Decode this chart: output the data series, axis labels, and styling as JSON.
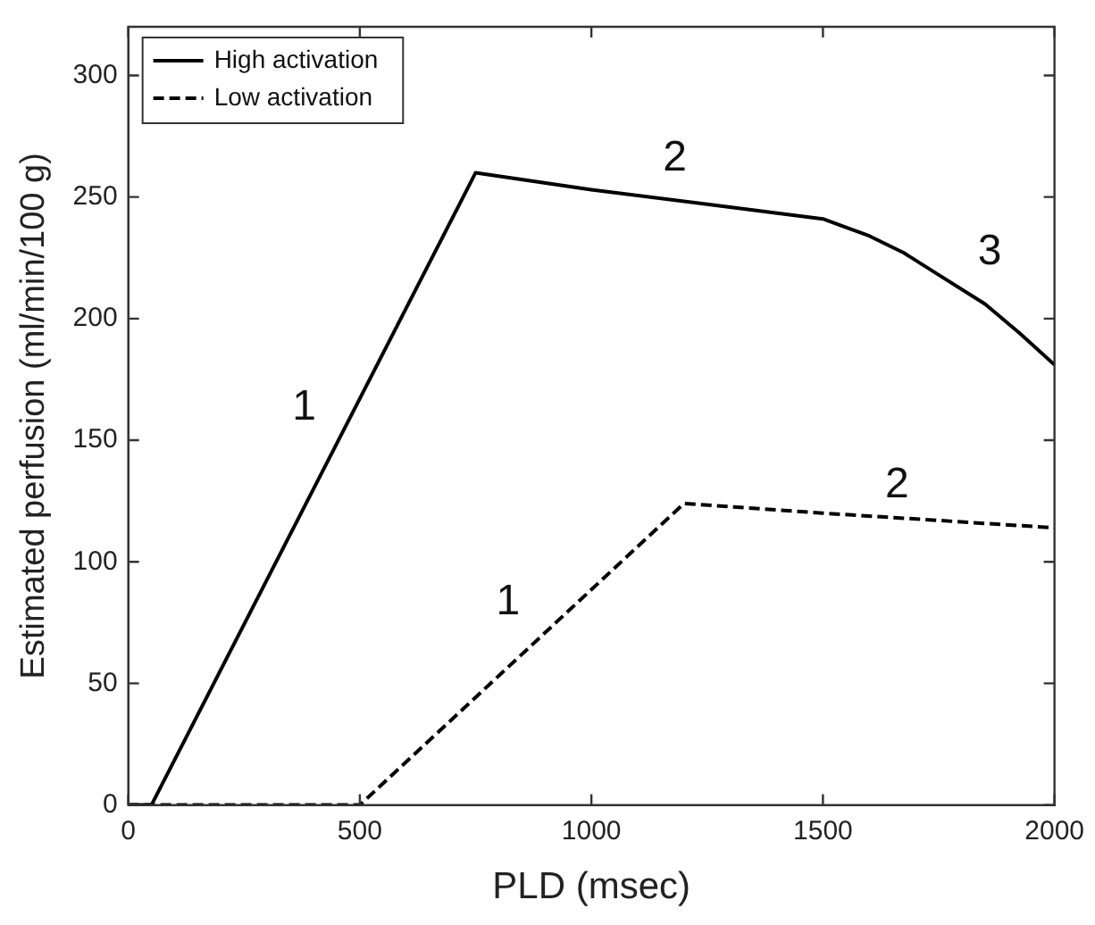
{
  "chart_data": {
    "type": "line",
    "xlabel": "PLD (msec)",
    "ylabel": "Estimated perfusion (ml/min/100 g)",
    "xlim": [
      0,
      2000
    ],
    "xticks": [
      0,
      500,
      1000,
      1500,
      2000
    ],
    "ylim": [
      0,
      320
    ],
    "yticks": [
      0,
      50,
      100,
      150,
      200,
      250,
      300
    ],
    "series": [
      {
        "name": "High activation",
        "color": "#000000",
        "line_style": "solid",
        "x": [
          0,
          50,
          750,
          1000,
          1250,
          1500,
          1600,
          1675,
          1750,
          1850,
          1925,
          2000
        ],
        "values": [
          0,
          0,
          260,
          253,
          247,
          241,
          234,
          227,
          218,
          206,
          194,
          181
        ]
      },
      {
        "name": "Low activation",
        "color": "#000000",
        "line_style": "dashed",
        "x": [
          0,
          500,
          1200,
          1500,
          2000
        ],
        "values": [
          0,
          0,
          124,
          120,
          114
        ]
      }
    ],
    "annotations": [
      "1",
      "2",
      "3",
      "1",
      "2"
    ],
    "legend": "top left",
    "grid": false,
    "marker": "none"
  }
}
